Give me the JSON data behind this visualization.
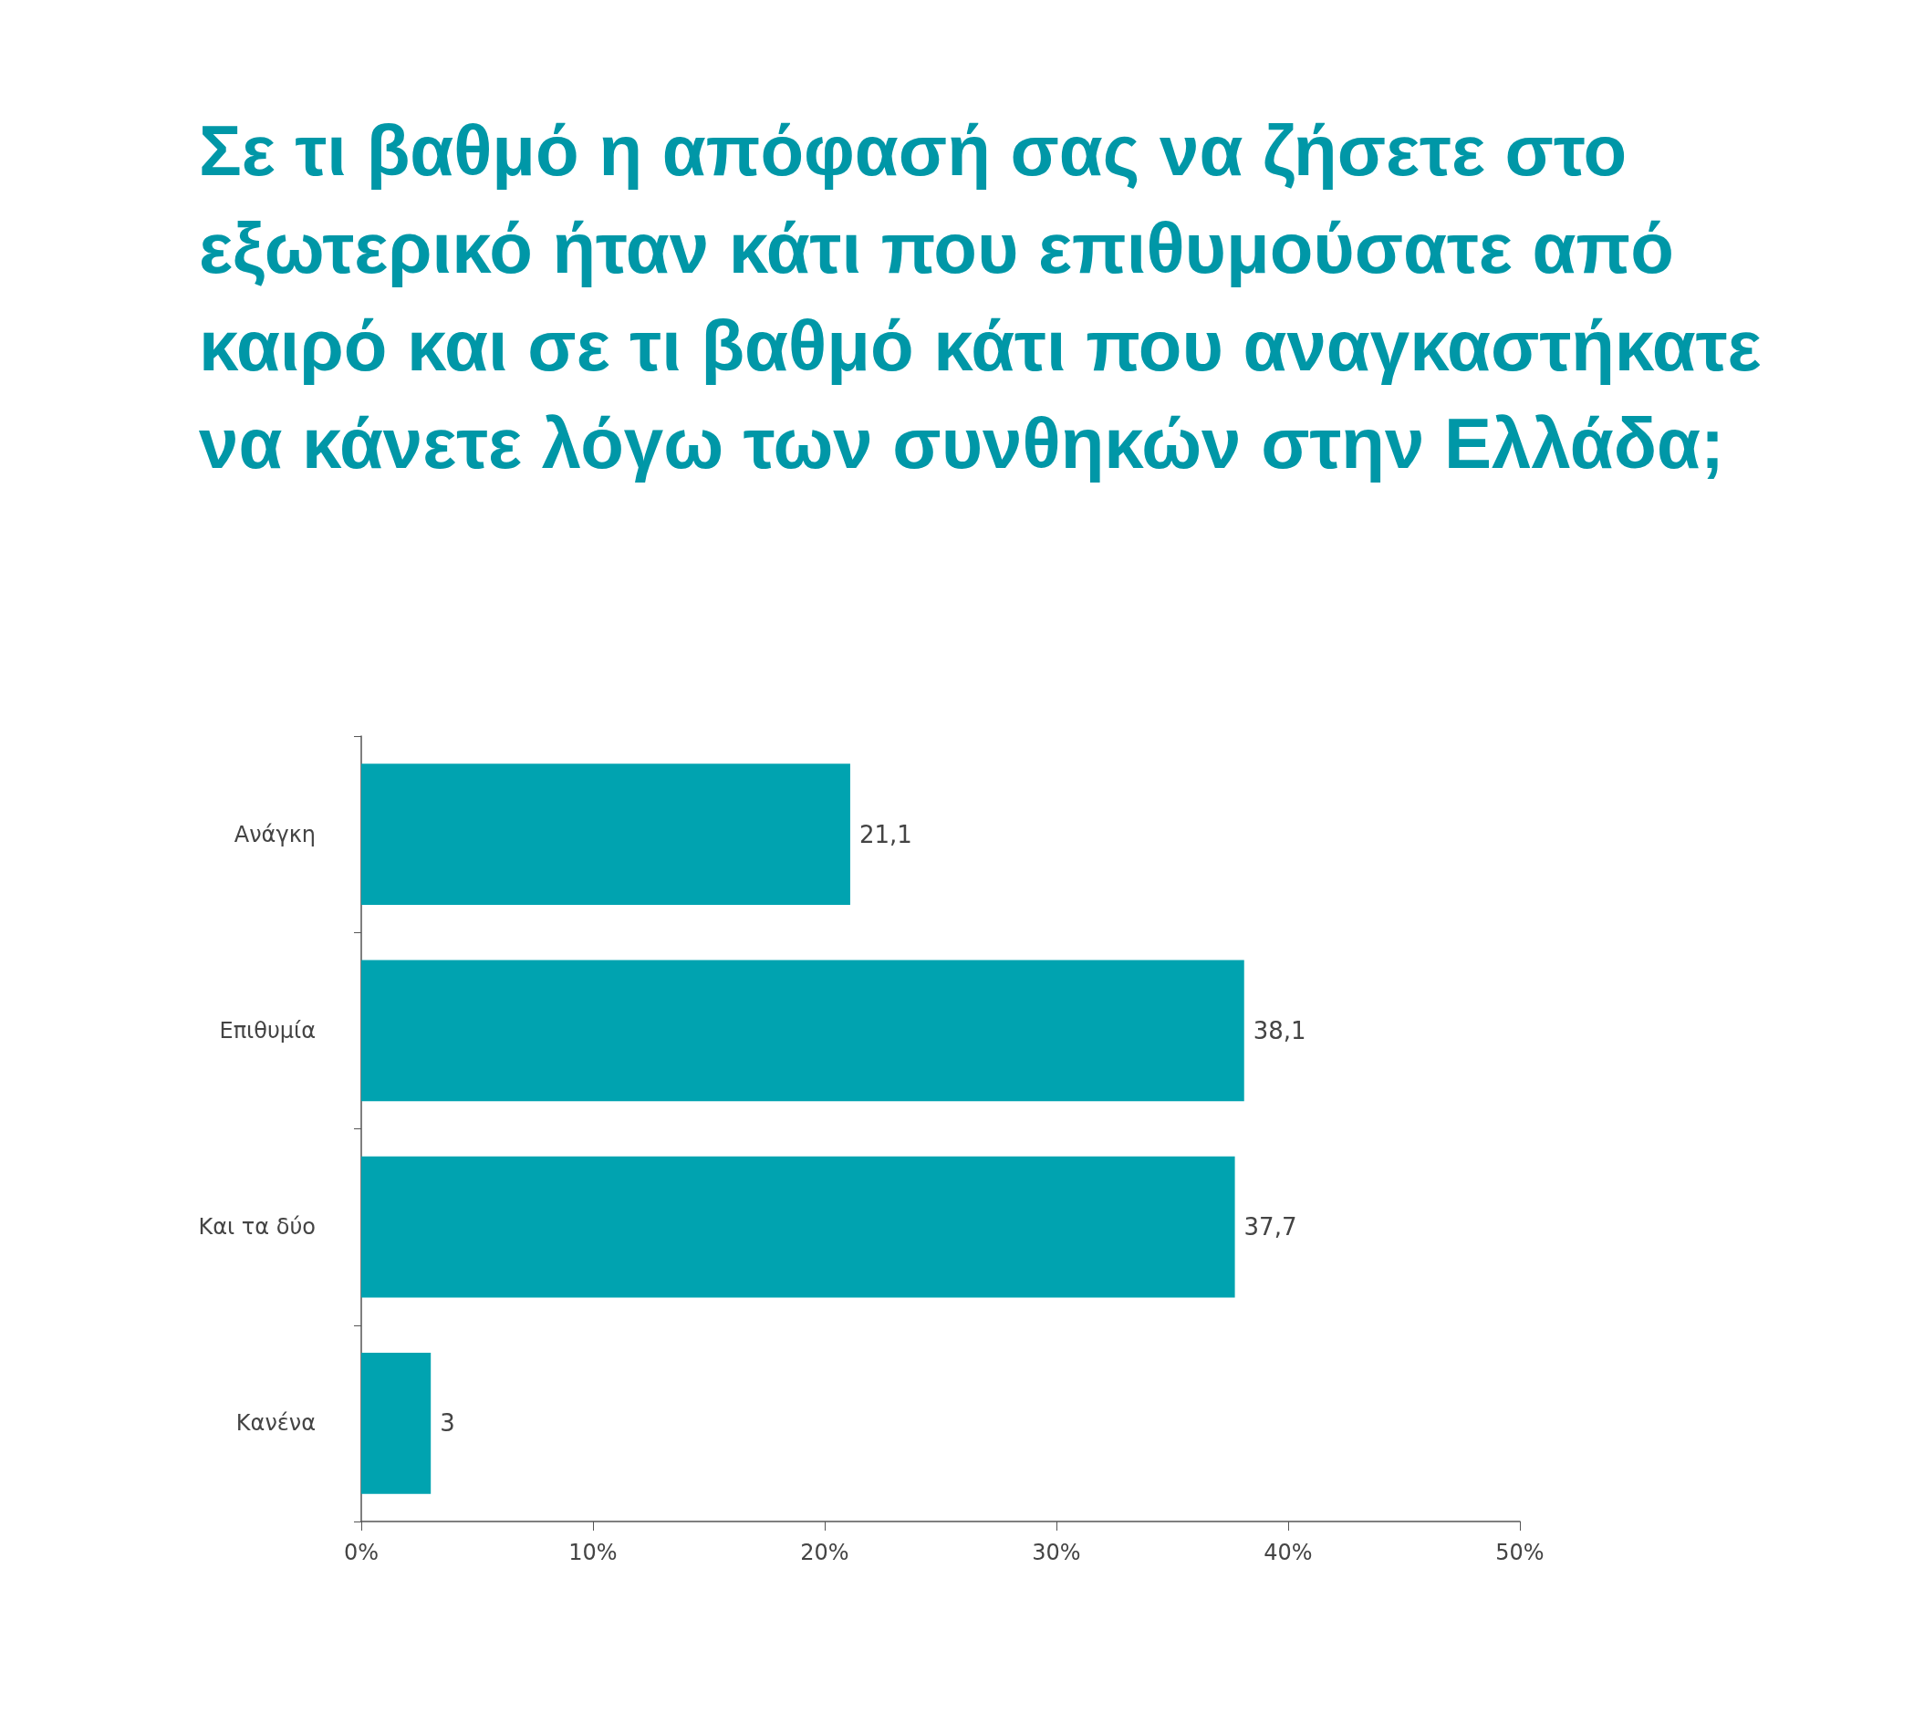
{
  "chart_data": {
    "type": "bar",
    "orientation": "horizontal",
    "title": "Σε τι βαθμό η απόφασή σας να ζήσετε στο εξωτερικό ήταν κάτι που επιθυμούσατε από καιρό και σε τι βαθμό κάτι που αναγκαστήκατε να κάνετε λόγω των συνθηκών στην Ελλάδα;",
    "categories": [
      "Ανάγκη",
      "Επιθυμία",
      "Και τα δύο",
      "Κανένα"
    ],
    "values": [
      21.1,
      38.1,
      37.7,
      3
    ],
    "value_labels": [
      "21,1",
      "38,1",
      "37,7",
      "3"
    ],
    "color": "#00a3b0",
    "xlim": [
      0,
      50
    ],
    "xticks": [
      {
        "value": 0,
        "label": "0%"
      },
      {
        "value": 10,
        "label": "10%"
      },
      {
        "value": 20,
        "label": "20%"
      },
      {
        "value": 30,
        "label": "30%"
      },
      {
        "value": 40,
        "label": "40%"
      },
      {
        "value": 50,
        "label": "50%"
      }
    ],
    "grid": false
  }
}
